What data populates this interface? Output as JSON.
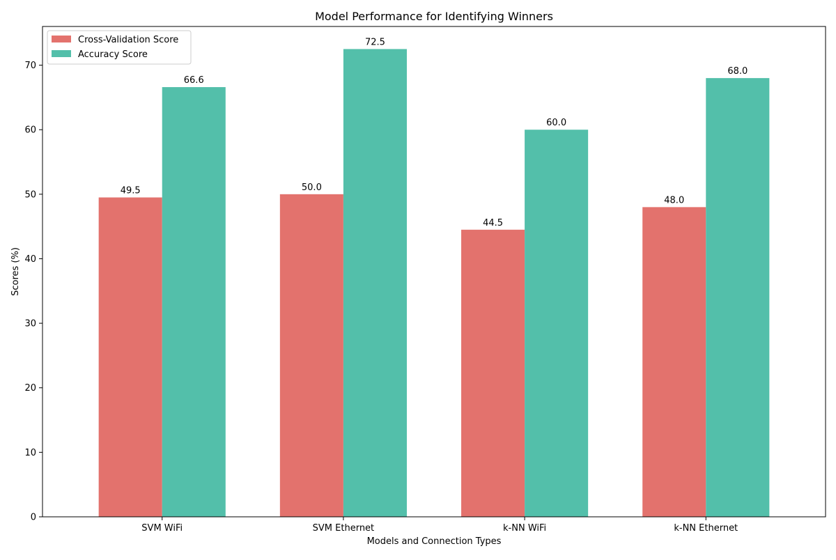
{
  "colors": {
    "cross_validation": "#e3726d",
    "accuracy": "#53bfaa",
    "axis": "#000000",
    "background": "#ffffff"
  },
  "chart_data": {
    "type": "bar",
    "title": "Model Performance for Identifying Winners",
    "xlabel": "Models and Connection Types",
    "ylabel": "Scores (%)",
    "categories": [
      "SVM WiFi",
      "SVM Ethernet",
      "k-NN WiFi",
      "k-NN Ethernet"
    ],
    "series": [
      {
        "name": "Cross-Validation Score",
        "color": "#e3726d",
        "values": [
          49.5,
          50.0,
          44.5,
          48.0
        ],
        "labels": [
          "49.5",
          "50.0",
          "44.5",
          "48.0"
        ]
      },
      {
        "name": "Accuracy Score",
        "color": "#53bfaa",
        "values": [
          66.6,
          72.5,
          60.0,
          68.0
        ],
        "labels": [
          "66.6",
          "72.5",
          "60.0",
          "68.0"
        ]
      }
    ],
    "ylim": [
      0,
      76
    ],
    "yticks": [
      0,
      10,
      20,
      30,
      40,
      50,
      60,
      70
    ],
    "grid": false,
    "legend": "top-left"
  }
}
